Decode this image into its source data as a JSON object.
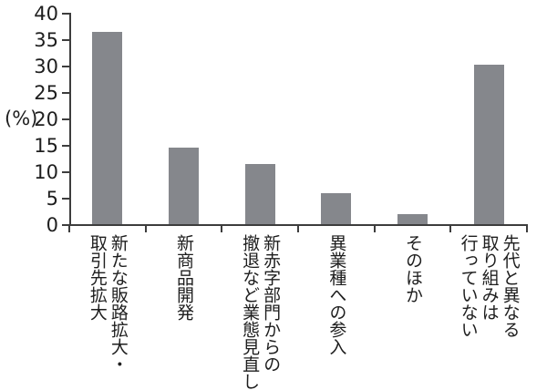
{
  "chart_data": {
    "type": "bar",
    "title": "",
    "xlabel": "",
    "ylabel": "(%)",
    "ylim": [
      0,
      40
    ],
    "yticks": [
      0,
      5,
      10,
      15,
      20,
      25,
      30,
      35,
      40
    ],
    "grid": false,
    "legend": false,
    "bar_color": "#85878c",
    "categories": [
      "新たな販路拡大・取引先拡大",
      "新商品開発",
      "新赤字部門からの撤退など業態見直し",
      "異業種への参入",
      "そのほか",
      "先代と異なる取り組みは行っていない"
    ],
    "category_lines": [
      [
        "新たな販路拡大・",
        "取引先拡大"
      ],
      [
        "新商品開発"
      ],
      [
        "新赤字部門からの",
        "撤退など業態見直し"
      ],
      [
        "異業種への参入"
      ],
      [
        "そのほか"
      ],
      [
        "先代と異なる",
        "取り組みは",
        "行っていない"
      ]
    ],
    "values": [
      36.4,
      14.5,
      11.3,
      5.8,
      1.9,
      30.1
    ]
  }
}
